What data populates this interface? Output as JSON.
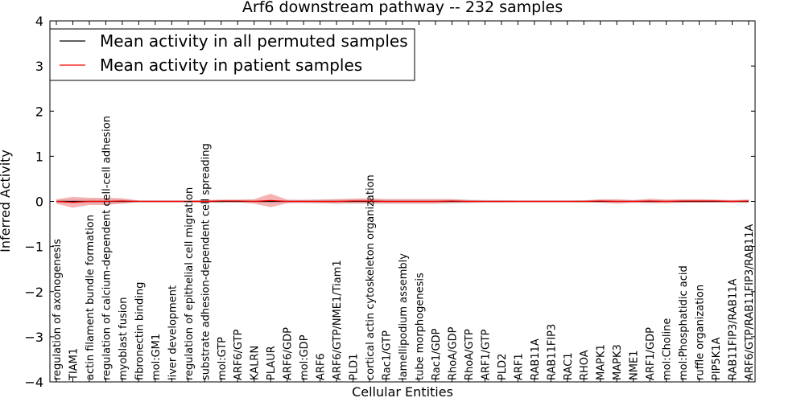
{
  "chart_data": {
    "type": "line",
    "title": "Arf6 downstream pathway -- 232 samples",
    "xlabel": "Cellular Entities",
    "ylabel": "Inferred Activity",
    "ylim": [
      -4,
      4
    ],
    "yticks": [
      -4,
      -3,
      -2,
      -1,
      0,
      1,
      2,
      3,
      4
    ],
    "ytick_labels": [
      "−4",
      "−3",
      "−2",
      "−1",
      "0",
      "1",
      "2",
      "3",
      "4"
    ],
    "legend_position": "top-left",
    "categories": [
      "regulation of axonogenesis",
      "TIAM1",
      "actin filament bundle formation",
      "regulation of calcium-dependent cell-cell adhesion",
      "myoblast fusion",
      "fibronectin binding",
      "mol:GM1",
      "liver development",
      "regulation of epithelial cell migration",
      "substrate adhesion-dependent cell spreading",
      "mol:GTP",
      "ARF6/GTP",
      "KALRN",
      "PLAUR",
      "ARF6/GDP",
      "mol:GDP",
      "ARF6",
      "ARF6/GTP/NME1/Tiam1",
      "PLD1",
      "cortical actin cytoskeleton organization",
      "Rac1/GTP",
      "lamellipodium assembly",
      "tube morphogenesis",
      "Rac1/GDP",
      "RhoA/GDP",
      "RhoA/GTP",
      "ARF1/GTP",
      "PLD2",
      "ARF1",
      "RAB11A",
      "RAB11FIP3",
      "RAC1",
      "RHOA",
      "MAPK1",
      "MAPK3",
      "NME1",
      "ARF1/GDP",
      "mol:Choline",
      "mol:Phosphatidic acid",
      "ruffle organization",
      "PIP5K1A",
      "RAB11FIP3/RAB11A",
      "ARF6/GTP/RAB11FIP3/RAB11A"
    ],
    "series": [
      {
        "name": "Mean activity in all permuted samples",
        "color": "#000000",
        "values": [
          0,
          0,
          0,
          0,
          0,
          0,
          0,
          0,
          0,
          0,
          0,
          0,
          0,
          0,
          0,
          0,
          0,
          0,
          0,
          0,
          0,
          0,
          0,
          0,
          0,
          0,
          0,
          0,
          0,
          0,
          0,
          0,
          0,
          0,
          0,
          0,
          0,
          0,
          0,
          0,
          0,
          0,
          0
        ],
        "spread": [
          0.03,
          0.05,
          0.05,
          0.05,
          0.04,
          0.02,
          0.02,
          0.02,
          0.02,
          0.03,
          0.03,
          0.03,
          0.03,
          0.03,
          0.03,
          0.04,
          0.04,
          0.05,
          0.05,
          0.05,
          0.05,
          0.05,
          0.05,
          0.05,
          0.05,
          0.04,
          0.03,
          0.03,
          0.02,
          0.02,
          0.02,
          0.02,
          0.03,
          0.03,
          0.03,
          0.03,
          0.03,
          0.03,
          0.03,
          0.03,
          0.03,
          0.03,
          0.04
        ]
      },
      {
        "name": "Mean activity in patient samples",
        "color": "#ff0000",
        "values": [
          0.0,
          -0.02,
          0.0,
          0.0,
          0.01,
          0.0,
          0.0,
          0.0,
          0.0,
          0.0,
          0.01,
          0.01,
          0.0,
          0.02,
          0.0,
          0.0,
          0.0,
          0.0,
          0.01,
          0.01,
          0.0,
          0.0,
          0.0,
          0.0,
          0.01,
          0.0,
          0.0,
          0.0,
          0.0,
          0.0,
          0.0,
          0.0,
          0.0,
          0.01,
          0.0,
          0.0,
          0.01,
          0.0,
          0.01,
          0.01,
          0.01,
          0.0,
          0.01
        ],
        "spread": [
          0.05,
          0.12,
          0.08,
          0.08,
          0.06,
          0.02,
          0.02,
          0.02,
          0.02,
          0.03,
          0.03,
          0.03,
          0.05,
          0.15,
          0.04,
          0.03,
          0.04,
          0.05,
          0.05,
          0.06,
          0.05,
          0.05,
          0.05,
          0.05,
          0.04,
          0.03,
          0.02,
          0.02,
          0.02,
          0.02,
          0.02,
          0.02,
          0.02,
          0.04,
          0.05,
          0.03,
          0.05,
          0.04,
          0.04,
          0.04,
          0.03,
          0.03,
          0.03
        ]
      }
    ],
    "colors": {
      "permuted_band": "#bbbbbb",
      "patient_band": "#f08080"
    }
  }
}
